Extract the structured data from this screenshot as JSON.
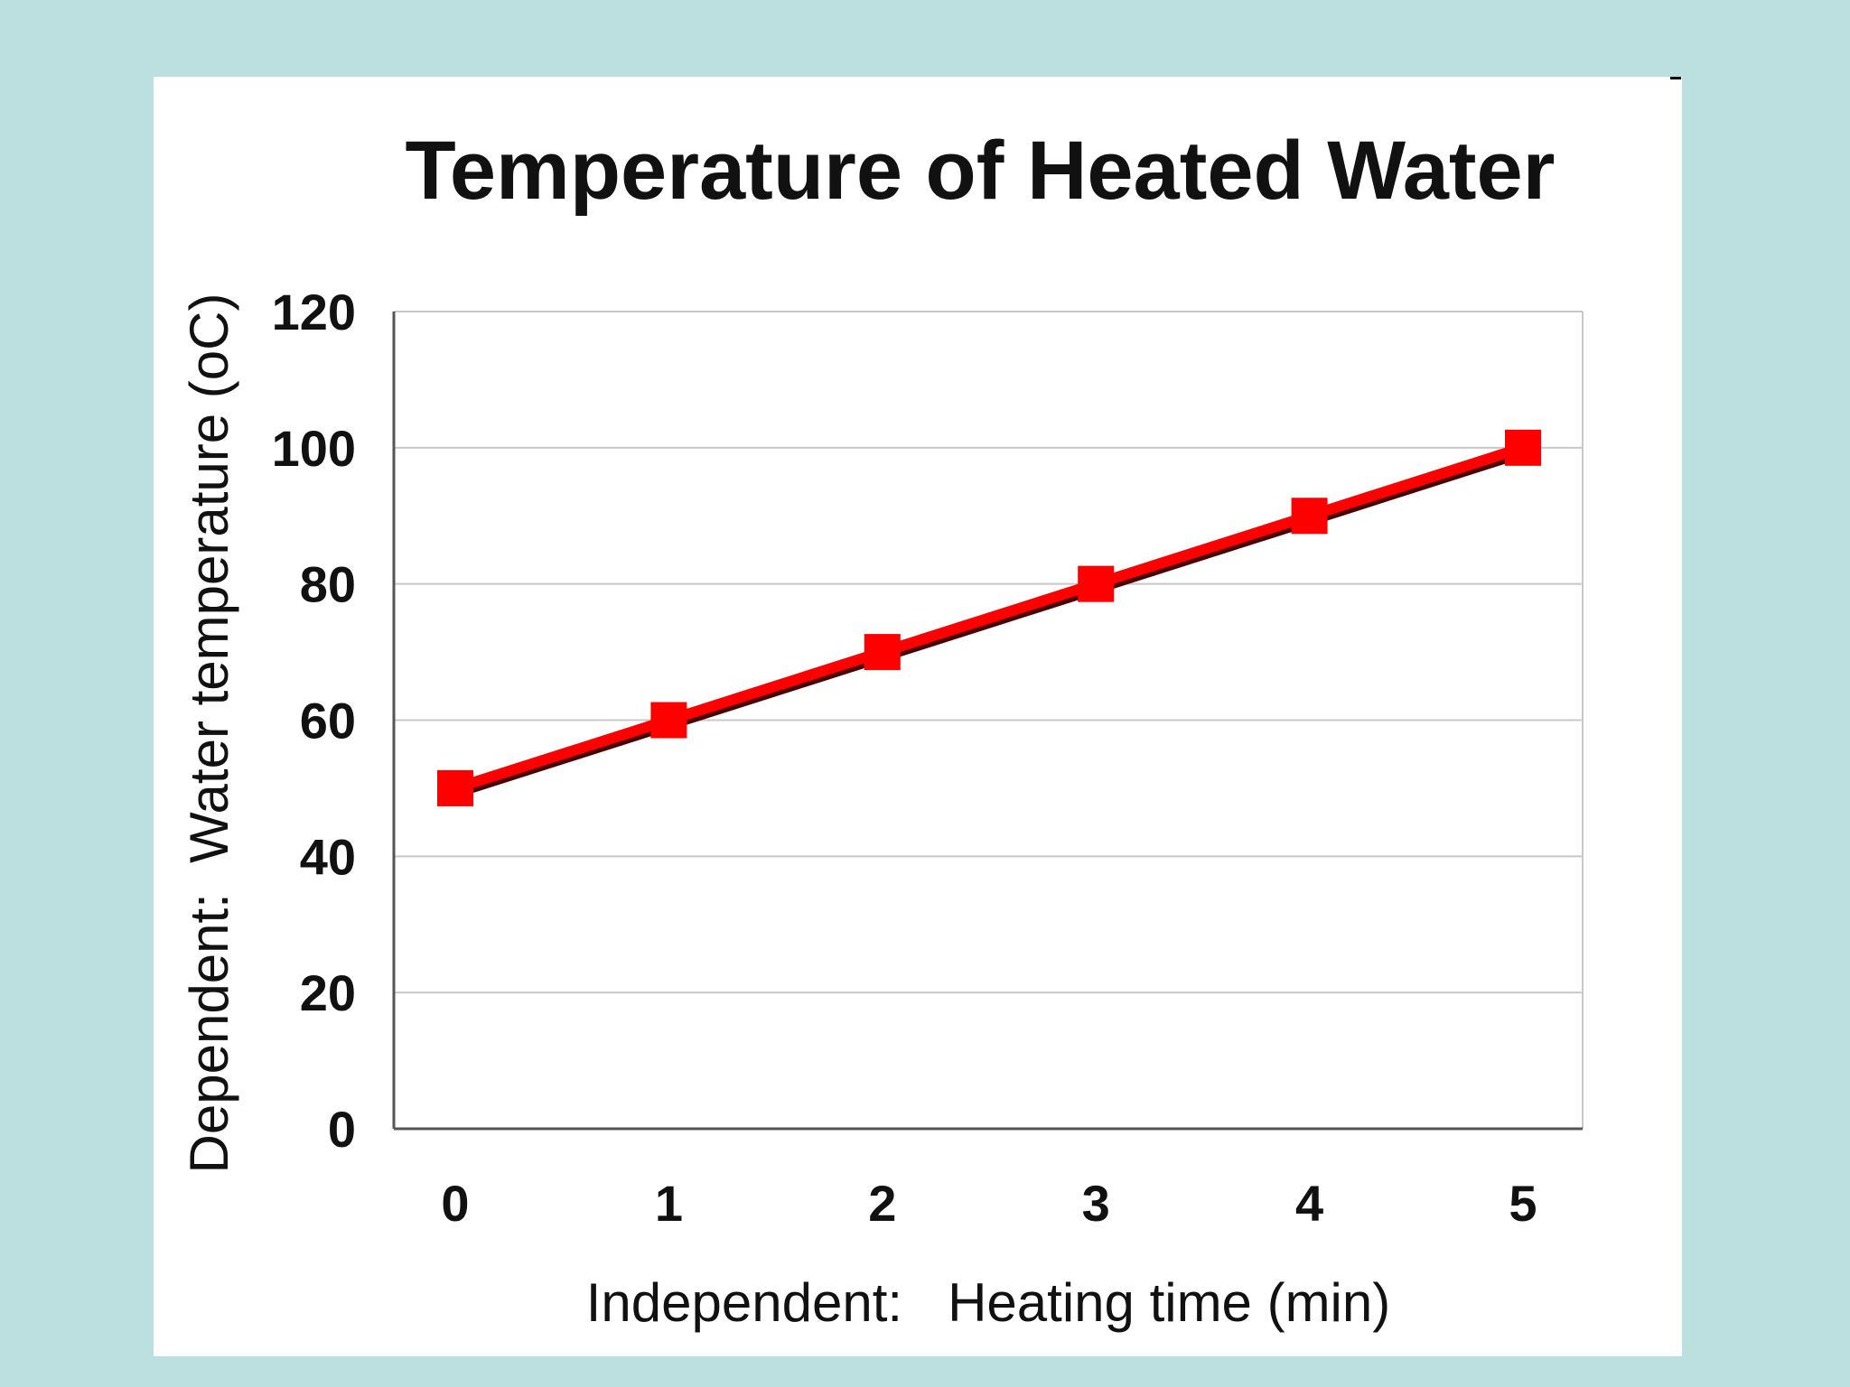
{
  "colors": {
    "background": "#bcdfe0",
    "panel": "#ffffff",
    "series": "#ff0000",
    "grid": "#c8c8c8",
    "text": "#111111"
  },
  "chart_data": {
    "type": "line",
    "title": "Temperature of Heated Water",
    "xlabel": "Independent:   Heating time (min)",
    "ylabel": "Dependent:  Water temperature (oC)",
    "x": [
      0,
      1,
      2,
      3,
      4,
      5
    ],
    "x_ticks": [
      "0",
      "1",
      "2",
      "3",
      "4",
      "5"
    ],
    "y_ticks": [
      "0",
      "20",
      "40",
      "60",
      "80",
      "100",
      "120"
    ],
    "ylim": [
      0,
      120
    ],
    "grid": true,
    "legend": "none",
    "series": [
      {
        "name": "Water temperature",
        "values": [
          50,
          60,
          70,
          80,
          90,
          100
        ],
        "marker": "square"
      }
    ]
  }
}
